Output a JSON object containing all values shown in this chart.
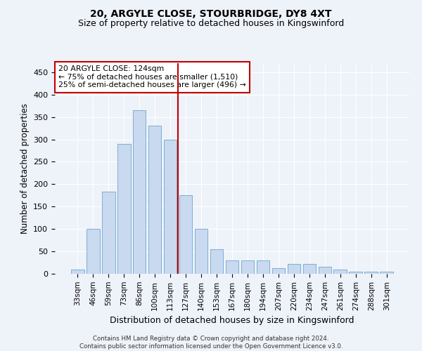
{
  "title1": "20, ARGYLE CLOSE, STOURBRIDGE, DY8 4XT",
  "title2": "Size of property relative to detached houses in Kingswinford",
  "xlabel": "Distribution of detached houses by size in Kingswinford",
  "ylabel": "Number of detached properties",
  "footer1": "Contains HM Land Registry data © Crown copyright and database right 2024.",
  "footer2": "Contains public sector information licensed under the Open Government Licence v3.0.",
  "categories": [
    "33sqm",
    "46sqm",
    "59sqm",
    "73sqm",
    "86sqm",
    "100sqm",
    "113sqm",
    "127sqm",
    "140sqm",
    "153sqm",
    "167sqm",
    "180sqm",
    "194sqm",
    "207sqm",
    "220sqm",
    "234sqm",
    "247sqm",
    "261sqm",
    "274sqm",
    "288sqm",
    "301sqm"
  ],
  "values": [
    10,
    100,
    183,
    290,
    365,
    330,
    300,
    175,
    100,
    55,
    30,
    30,
    30,
    12,
    22,
    22,
    15,
    10,
    5,
    5,
    5
  ],
  "bar_color": "#c9d9ef",
  "bar_edge_color": "#7bafd4",
  "highlight_color": "#c00000",
  "highlight_x": "127sqm",
  "annotation_title": "20 ARGYLE CLOSE: 124sqm",
  "annotation_line1": "← 75% of detached houses are smaller (1,510)",
  "annotation_line2": "25% of semi-detached houses are larger (496) →",
  "annotation_box_color": "#ffffff",
  "annotation_box_edge": "#c00000",
  "ylim": [
    0,
    470
  ],
  "yticks": [
    0,
    50,
    100,
    150,
    200,
    250,
    300,
    350,
    400,
    450
  ],
  "background_color": "#eef2f9",
  "grid_color": "#ffffff",
  "title1_fontsize": 10,
  "title2_fontsize": 9
}
